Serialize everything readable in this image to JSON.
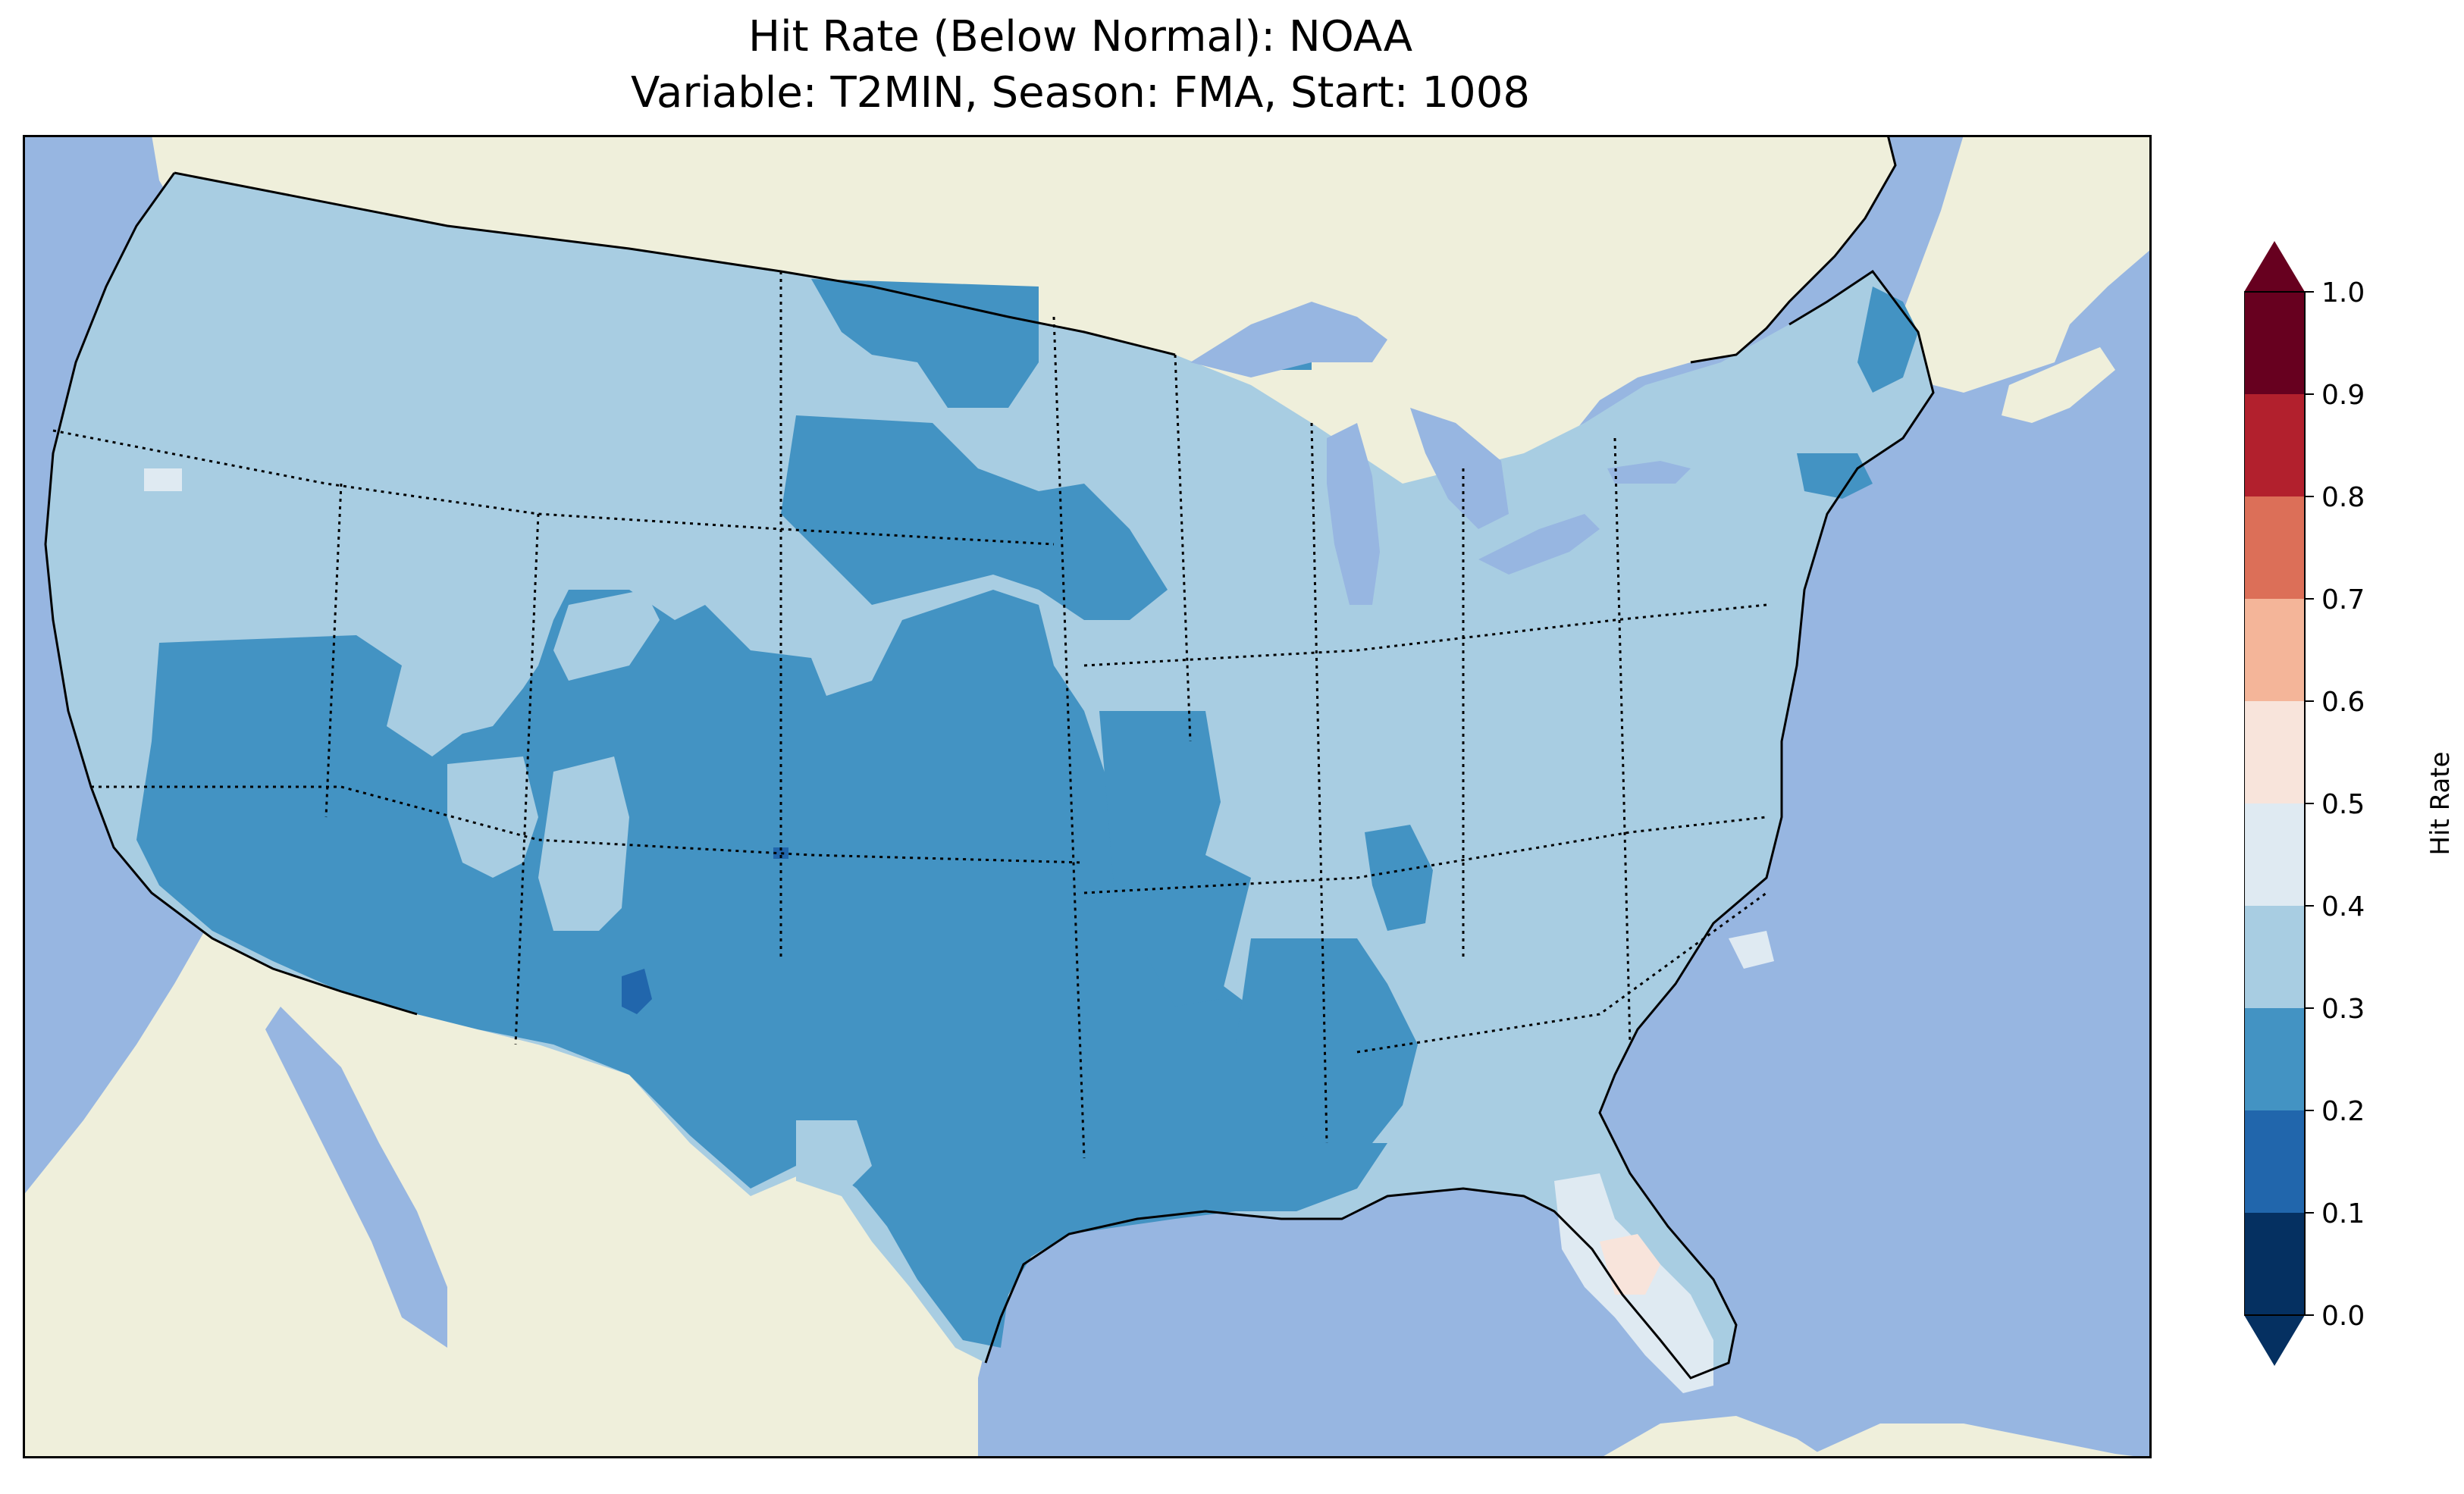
{
  "title": {
    "line1": "Hit Rate (Below Normal): NOAA",
    "line2": "Variable: T2MIN, Season: FMA, Start: 1008"
  },
  "map": {
    "projection": "Lambert Conformal, contiguous United States",
    "ocean_color": "#97b6e1",
    "land_color": "#efefdb",
    "features": [
      "coastlines",
      "state-borders",
      "country-borders",
      "lakes"
    ]
  },
  "colorbar": {
    "label": "Hit Rate",
    "ticks": [
      "0.0",
      "0.1",
      "0.2",
      "0.3",
      "0.4",
      "0.5",
      "0.6",
      "0.7",
      "0.8",
      "0.9",
      "1.0"
    ],
    "extend": "both",
    "under_color": "#053061",
    "over_color": "#67001f",
    "bins": [
      {
        "from": 0.0,
        "to": 0.1,
        "color": "#053061"
      },
      {
        "from": 0.1,
        "to": 0.2,
        "color": "#2166ac"
      },
      {
        "from": 0.2,
        "to": 0.3,
        "color": "#4393c3"
      },
      {
        "from": 0.3,
        "to": 0.4,
        "color": "#a8cde2"
      },
      {
        "from": 0.4,
        "to": 0.5,
        "color": "#dfeaf2"
      },
      {
        "from": 0.5,
        "to": 0.6,
        "color": "#f8e4db"
      },
      {
        "from": 0.6,
        "to": 0.7,
        "color": "#f4b599"
      },
      {
        "from": 0.7,
        "to": 0.8,
        "color": "#dc6f58"
      },
      {
        "from": 0.8,
        "to": 0.9,
        "color": "#b2202d"
      },
      {
        "from": 0.9,
        "to": 1.0,
        "color": "#67001f"
      }
    ]
  },
  "regions": [
    {
      "name": "western-light-band",
      "hit_rate_bin": "0.3-0.4"
    },
    {
      "name": "southwest-texas",
      "hit_rate_bin": "0.2-0.3"
    },
    {
      "name": "central-plains",
      "hit_rate_bin": "0.2-0.3"
    },
    {
      "name": "north-dakota",
      "hit_rate_bin": "0.2-0.3"
    },
    {
      "name": "lower-mississippi",
      "hit_rate_bin": "0.2-0.3"
    },
    {
      "name": "eastern-us",
      "hit_rate_bin": "0.3-0.4"
    },
    {
      "name": "new-mexico-spot",
      "hit_rate_bin": "0.1-0.2"
    },
    {
      "name": "florida",
      "hit_rate_bin": "0.4-0.5"
    },
    {
      "name": "central-florida",
      "hit_rate_bin": "0.5-0.6"
    },
    {
      "name": "maine-coast",
      "hit_rate_bin": "0.2-0.3"
    },
    {
      "name": "outer-banks",
      "hit_rate_bin": "0.4-0.5"
    }
  ]
}
